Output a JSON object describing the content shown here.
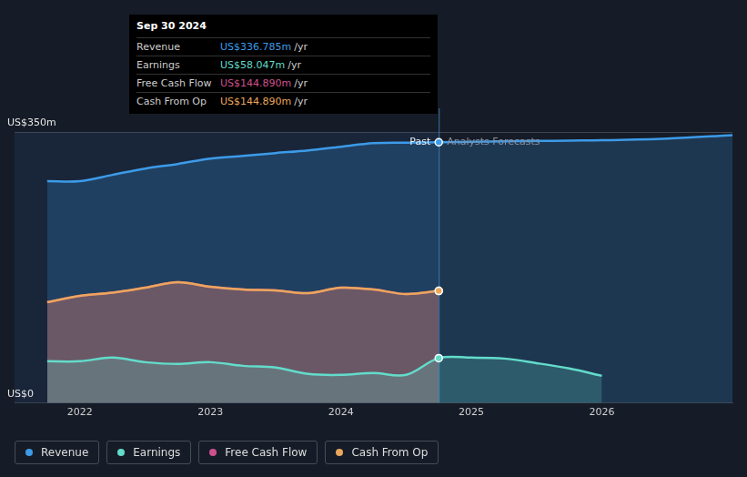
{
  "chart_data": {
    "type": "line",
    "x": [
      2021.75,
      2022,
      2022.25,
      2022.5,
      2022.75,
      2023,
      2023.25,
      2023.5,
      2023.75,
      2024,
      2024.25,
      2024.5,
      2024.75,
      2025,
      2025.25,
      2025.5,
      2025.75,
      2026,
      2026.5,
      2027
    ],
    "xlim": [
      2021.5,
      2027
    ],
    "xticks": [
      2022,
      2023,
      2024,
      2025,
      2026
    ],
    "ylim": [
      0,
      350
    ],
    "yticks": [
      {
        "value": 0,
        "label": "US$0"
      },
      {
        "value": 350,
        "label": "US$350m"
      }
    ],
    "grid": true,
    "legend": "bottom",
    "annotations": [
      {
        "text": "Past",
        "x": 2024.75
      },
      {
        "text": "Analysts Forecasts",
        "x": 2024.75
      }
    ],
    "tooltip": {
      "title": "Sep 30 2024",
      "rows": [
        {
          "label": "Revenue",
          "value": "US$336.785m",
          "unit": "/yr",
          "color": "#3d9be9"
        },
        {
          "label": "Earnings",
          "value": "US$58.047m",
          "unit": "/yr",
          "color": "#63dccb"
        },
        {
          "label": "Free Cash Flow",
          "value": "US$144.890m",
          "unit": "/yr",
          "color": "#d0508f"
        },
        {
          "label": "Cash From Op",
          "value": "US$144.890m",
          "unit": "/yr",
          "color": "#eba65c"
        }
      ]
    },
    "series": [
      {
        "name": "Revenue",
        "color": "#3d9be9",
        "values": [
          286.4,
          286.5,
          294.6,
          302.8,
          308.7,
          315.7,
          319.2,
          322.8,
          326.3,
          331,
          335.5,
          336.2,
          336.785,
          337.3,
          337.9,
          338.4,
          338.9,
          339.3,
          341.5,
          346
        ]
      },
      {
        "name": "Earnings",
        "color": "#63dccb",
        "values": [
          54,
          54,
          58.7,
          52.8,
          50.5,
          52.8,
          48.1,
          45.8,
          37.6,
          36.4,
          38.7,
          36.4,
          58.047,
          58.7,
          57.5,
          51.6,
          44.6,
          35.2,
          null,
          null
        ]
      },
      {
        "name": "Free Cash Flow",
        "color": "#d0508f",
        "values": [
          130.3,
          138.5,
          142.6,
          149,
          156.1,
          150.2,
          146.7,
          145.5,
          142,
          149,
          146.7,
          140.8,
          144.89,
          null,
          null,
          null,
          null,
          null,
          null,
          null
        ]
      },
      {
        "name": "Cash From Op",
        "color": "#eba65c",
        "values": [
          130.3,
          138.5,
          142.6,
          149,
          156.1,
          150.2,
          146.7,
          145.5,
          142,
          149,
          146.7,
          140.8,
          144.89,
          null,
          null,
          null,
          null,
          null,
          null,
          null
        ]
      }
    ]
  }
}
